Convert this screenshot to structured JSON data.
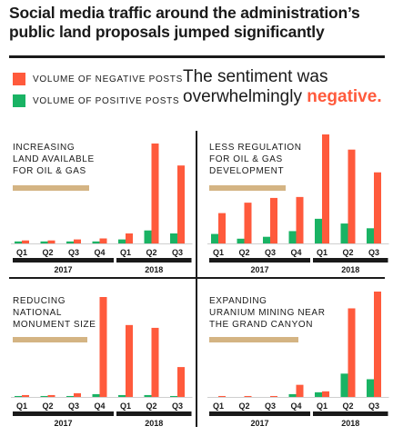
{
  "title_lines": [
    "Social media traffic around the administration’s",
    "public land proposals jumped significantly"
  ],
  "legend": [
    {
      "label": "VOLUME OF NEGATIVE POSTS",
      "color": "#ff5a3c"
    },
    {
      "label": "VOLUME OF POSITIVE POSTS",
      "color": "#19b364"
    }
  ],
  "annotation": {
    "line1": "The sentiment was",
    "line2_prefix": "overwhelmingly ",
    "line2_emphasis": "negative."
  },
  "colors": {
    "negative": "#ff5a3c",
    "positive": "#19b364",
    "highlight": "#d4b483",
    "axis": "#1a1a1a"
  },
  "chart_data": [
    {
      "type": "bar",
      "title_lines": [
        "INCREASING",
        "LAND AVAILABLE",
        "FOR OIL & GAS"
      ],
      "categories": [
        "Q1",
        "Q2",
        "Q3",
        "Q4",
        "Q1",
        "Q2",
        "Q3"
      ],
      "year_groups": [
        {
          "label": "2017",
          "span": [
            0,
            3
          ]
        },
        {
          "label": "2018",
          "span": [
            4,
            6
          ]
        }
      ],
      "series": [
        {
          "name": "VOLUME OF POSITIVE POSTS",
          "values": [
            2,
            2,
            2,
            2,
            4,
            13,
            10
          ]
        },
        {
          "name": "VOLUME OF NEGATIVE POSTS",
          "values": [
            3,
            3,
            4,
            5,
            10,
            100,
            78
          ]
        }
      ],
      "ylim": [
        0,
        100
      ]
    },
    {
      "type": "bar",
      "title_lines": [
        "LESS REGULATION",
        "FOR OIL & GAS",
        "DEVELOPMENT"
      ],
      "categories": [
        "Q1",
        "Q2",
        "Q3",
        "Q4",
        "Q1",
        "Q2",
        "Q3"
      ],
      "year_groups": [
        {
          "label": "2017",
          "span": [
            0,
            3
          ]
        },
        {
          "label": "2018",
          "span": [
            4,
            6
          ]
        }
      ],
      "series": [
        {
          "name": "VOLUME OF POSITIVE POSTS",
          "values": [
            10,
            5,
            7,
            13,
            26,
            21,
            16
          ]
        },
        {
          "name": "VOLUME OF NEGATIVE POSTS",
          "values": [
            32,
            43,
            48,
            49,
            115,
            99,
            75
          ]
        }
      ],
      "ylim": [
        0,
        115
      ]
    },
    {
      "type": "bar",
      "title_lines": [
        "REDUCING",
        "NATIONAL",
        "MONUMENT SIZE"
      ],
      "categories": [
        "Q1",
        "Q2",
        "Q3",
        "Q4",
        "Q1",
        "Q2",
        "Q3"
      ],
      "year_groups": [
        {
          "label": "2017",
          "span": [
            0,
            3
          ]
        },
        {
          "label": "2018",
          "span": [
            4,
            6
          ]
        }
      ],
      "series": [
        {
          "name": "VOLUME OF POSITIVE POSTS",
          "values": [
            1,
            1,
            1,
            3,
            2,
            2,
            1
          ]
        },
        {
          "name": "VOLUME OF NEGATIVE POSTS",
          "values": [
            2,
            2,
            4,
            107,
            77,
            74,
            32
          ]
        }
      ],
      "ylim": [
        0,
        107
      ]
    },
    {
      "type": "bar",
      "title_lines": [
        "EXPANDING",
        "URANIUM MINING NEAR",
        "THE GRAND CANYON"
      ],
      "categories": [
        "Q1",
        "Q2",
        "Q3",
        "Q4",
        "Q1",
        "Q2",
        "Q3"
      ],
      "year_groups": [
        {
          "label": "2017",
          "span": [
            0,
            3
          ]
        },
        {
          "label": "2018",
          "span": [
            4,
            6
          ]
        }
      ],
      "series": [
        {
          "name": "VOLUME OF POSITIVE POSTS",
          "values": [
            0,
            0,
            0,
            3,
            5,
            25,
            19
          ]
        },
        {
          "name": "VOLUME OF NEGATIVE POSTS",
          "values": [
            1,
            1,
            1,
            13,
            6,
            95,
            113
          ]
        }
      ],
      "ylim": [
        0,
        113
      ]
    }
  ]
}
